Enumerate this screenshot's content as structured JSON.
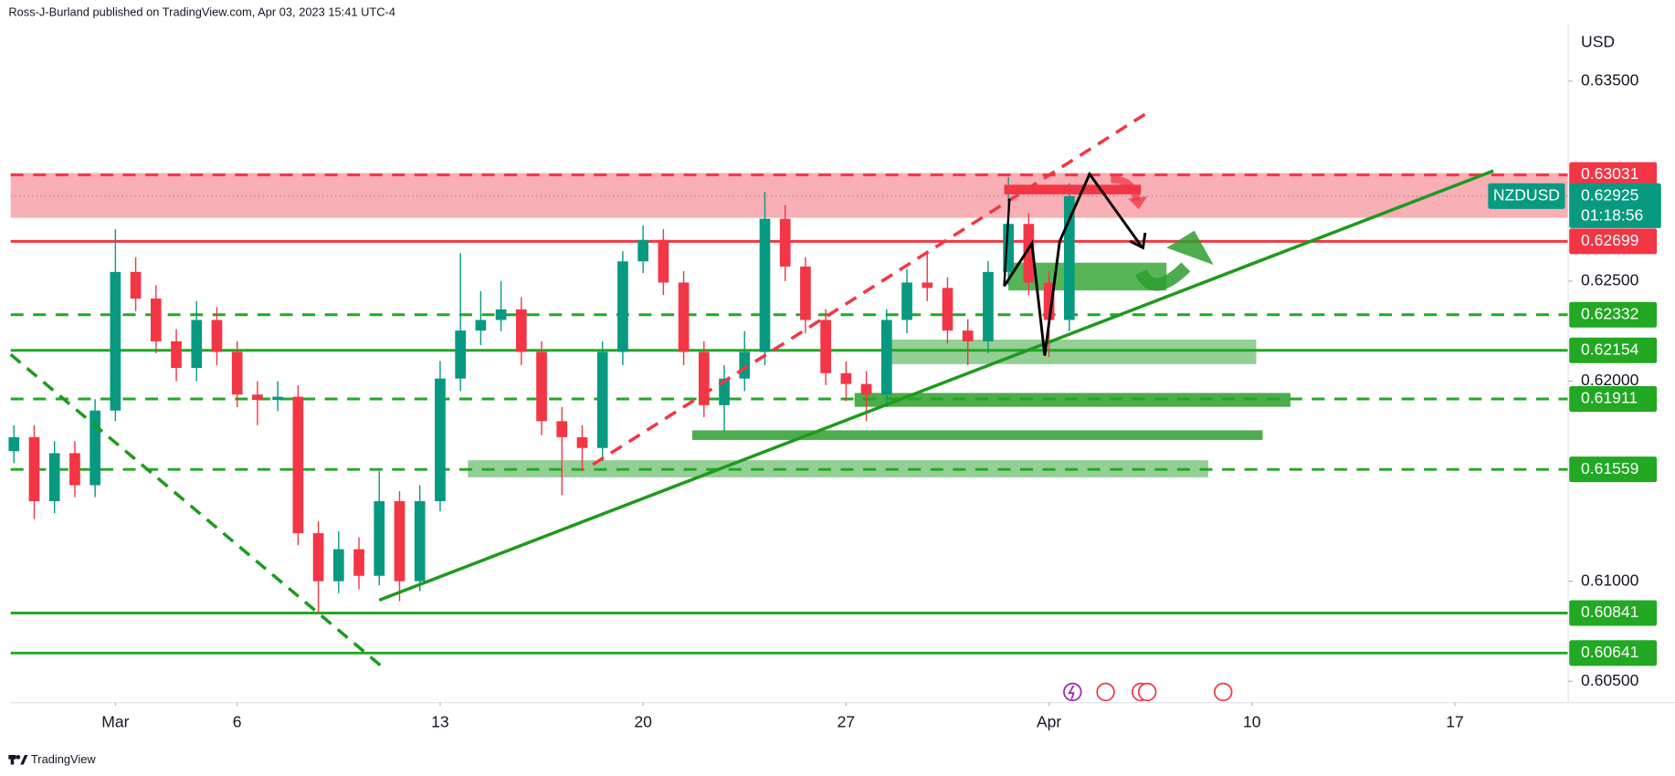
{
  "chart_data": {
    "type": "candlestick",
    "publisher": "Ross-J-Burland published on TradingView.com, Apr 03, 2023 15:41 UTC-4",
    "brand": "TradingView",
    "currency": "USD",
    "symbol": "NZDUSD",
    "last_price": 0.62925,
    "countdown": "01:18:56",
    "last_color": "#089981",
    "up_color": "#089981",
    "down_color": "#f23645",
    "grid": false,
    "x": [
      -2.5,
      -2,
      -1.5,
      -1,
      -0.5,
      0,
      0.5,
      1,
      1.5,
      2,
      2.5,
      3,
      3.5,
      4,
      4.5,
      5,
      5.5,
      6,
      6.5,
      7,
      7.5,
      8,
      8.5,
      9,
      9.5,
      10,
      10.5,
      11,
      11.5,
      12,
      12.5,
      13,
      13.5,
      14,
      14.5,
      15,
      15.5,
      16,
      16.5,
      17,
      17.5,
      18,
      18.5,
      19,
      19.5,
      20,
      20.5,
      21,
      21.5,
      22,
      22.5,
      23,
      23.5
    ],
    "open": [
      0.6165,
      0.6172,
      0.614,
      0.6164,
      0.6148,
      0.61853,
      0.62546,
      0.62413,
      0.62199,
      0.62066,
      0.62306,
      0.62146,
      0.61933,
      0.61906,
      0.61922,
      0.6124,
      0.61,
      0.6116,
      0.61027,
      0.614,
      0.61,
      0.614,
      0.62013,
      0.62253,
      0.62306,
      0.62359,
      0.62146,
      0.618,
      0.6172,
      0.61666,
      0.62146,
      0.62599,
      0.62706,
      0.62493,
      0.62146,
      0.6188,
      0.62013,
      0.62146,
      0.62812,
      0.62573,
      0.62306,
      0.6204,
      0.61986,
      0.61933,
      0.62306,
      0.62493,
      0.62466,
      0.62253,
      0.62199,
      0.62546,
      0.62786,
      0.62493,
      0.62306
    ],
    "high": [
      0.6178,
      0.6178,
      0.617,
      0.617,
      0.6191,
      0.6276,
      0.6262,
      0.6248,
      0.6226,
      0.624,
      0.6237,
      0.622,
      0.62,
      0.62,
      0.6198,
      0.613,
      0.6125,
      0.6122,
      0.6155,
      0.6145,
      0.6148,
      0.621,
      0.6264,
      0.6245,
      0.625,
      0.6242,
      0.622,
      0.6187,
      0.6178,
      0.622,
      0.6265,
      0.6278,
      0.6276,
      0.6255,
      0.622,
      0.6208,
      0.6225,
      0.62946,
      0.6288,
      0.6262,
      0.6236,
      0.621,
      0.6205,
      0.6236,
      0.6256,
      0.6264,
      0.6252,
      0.6231,
      0.626,
      0.6302,
      0.6284,
      0.6255,
      0.6299
    ],
    "low": [
      0.6159,
      0.6131,
      0.6134,
      0.6142,
      0.6142,
      0.618,
      0.6235,
      0.6214,
      0.62,
      0.62,
      0.6208,
      0.6187,
      0.6178,
      0.6185,
      0.6118,
      0.6084,
      0.6094,
      0.6096,
      0.6098,
      0.609,
      0.6095,
      0.6135,
      0.6195,
      0.6218,
      0.6225,
      0.6208,
      0.6173,
      0.6143,
      0.6155,
      0.616,
      0.6208,
      0.6254,
      0.6243,
      0.6208,
      0.6182,
      0.6175,
      0.6195,
      0.6208,
      0.625,
      0.6224,
      0.6198,
      0.619,
      0.618,
      0.6187,
      0.6224,
      0.624,
      0.6219,
      0.6208,
      0.6214,
      0.6248,
      0.6243,
      0.6212,
      0.6225
    ],
    "close": [
      0.6172,
      0.614,
      0.6164,
      0.6148,
      0.61853,
      0.62546,
      0.62413,
      0.62199,
      0.62066,
      0.62306,
      0.62146,
      0.61933,
      0.61906,
      0.61922,
      0.6124,
      0.61,
      0.6116,
      0.61027,
      0.614,
      0.61,
      0.614,
      0.62013,
      0.62253,
      0.62306,
      0.62359,
      0.62146,
      0.618,
      0.6172,
      0.61666,
      0.62146,
      0.62599,
      0.62706,
      0.62493,
      0.62146,
      0.6188,
      0.62013,
      0.62146,
      0.62812,
      0.62573,
      0.62306,
      0.6204,
      0.61986,
      0.61933,
      0.62306,
      0.62493,
      0.62466,
      0.62253,
      0.62199,
      0.62546,
      0.62786,
      0.62493,
      0.62306,
      0.62925
    ],
    "xlim": [
      -2.58,
      35.79
    ],
    "xticks": [
      {
        "value": 0,
        "label": "Mar"
      },
      {
        "value": 3,
        "label": "6"
      },
      {
        "value": 8,
        "label": "13"
      },
      {
        "value": 13,
        "label": "20"
      },
      {
        "value": 18,
        "label": "27"
      },
      {
        "value": 23,
        "label": "Apr"
      },
      {
        "value": 28,
        "label": "10"
      },
      {
        "value": 33,
        "label": "17"
      }
    ],
    "ylim": [
      0.60393,
      0.63788
    ],
    "yticks": [
      {
        "value": 0.605,
        "label": "0.60500"
      },
      {
        "value": 0.61,
        "label": "0.61000"
      },
      {
        "value": 0.62,
        "label": "0.62000"
      },
      {
        "value": 0.625,
        "label": "0.62500"
      },
      {
        "value": 0.635,
        "label": "0.63500"
      }
    ],
    "levels": [
      {
        "value": 0.63031,
        "color": "#f23645",
        "style": "dashed"
      },
      {
        "value": 0.62699,
        "color": "#f23645",
        "style": "solid"
      },
      {
        "value": 0.62332,
        "color": "#22a822",
        "style": "dashed"
      },
      {
        "value": 0.62154,
        "color": "#22a822",
        "style": "solid"
      },
      {
        "value": 0.61911,
        "color": "#22a822",
        "style": "dashed"
      },
      {
        "value": 0.61559,
        "color": "#22a822",
        "style": "dashed"
      },
      {
        "value": 0.60841,
        "color": "#22a822",
        "style": "solid"
      },
      {
        "value": 0.60641,
        "color": "#22a822",
        "style": "solid"
      }
    ]
  }
}
